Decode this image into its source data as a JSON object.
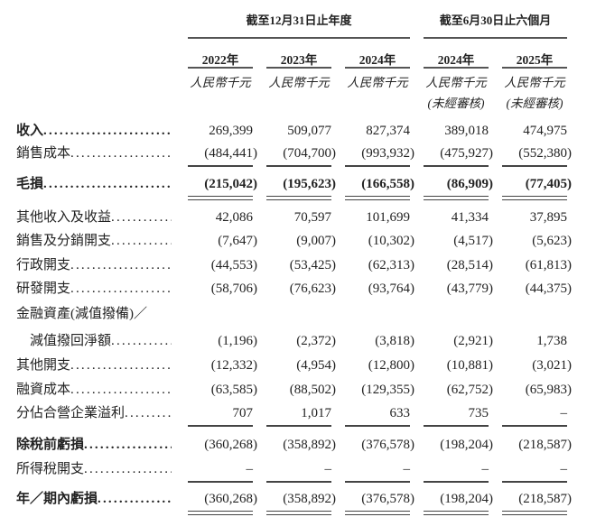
{
  "header": {
    "groups": [
      {
        "label": "截至12月31日止年度"
      },
      {
        "label": "截至6月30日止六個月"
      }
    ],
    "columns": [
      {
        "year": "2022年",
        "unit": "人民幣千元",
        "note": ""
      },
      {
        "year": "2023年",
        "unit": "人民幣千元",
        "note": ""
      },
      {
        "year": "2024年",
        "unit": "人民幣千元",
        "note": ""
      },
      {
        "year": "2024年",
        "unit": "人民幣千元",
        "note": "(未經審核)"
      },
      {
        "year": "2025年",
        "unit": "人民幣千元",
        "note": "(未經審核)"
      }
    ]
  },
  "rows": [
    {
      "label": "收入",
      "bold_label": true,
      "bold_values": false,
      "values": [
        "269,399",
        "509,077",
        "827,374",
        "389,018",
        "474,975"
      ],
      "rule_after": "none"
    },
    {
      "label": "銷售成本",
      "bold_label": false,
      "bold_values": false,
      "values": [
        "(484,441)",
        "(704,700)",
        "(993,932)",
        "(475,927)",
        "(552,380)"
      ],
      "rule_after": "single"
    },
    {
      "label": "毛損",
      "bold_label": true,
      "bold_values": true,
      "values": [
        "(215,042)",
        "(195,623)",
        "(166,558)",
        "(86,909)",
        "(77,405)"
      ],
      "rule_after": "double"
    },
    {
      "label": "其他收入及收益",
      "bold_label": false,
      "bold_values": false,
      "values": [
        "42,086",
        "70,597",
        "101,699",
        "41,334",
        "37,895"
      ],
      "rule_after": "none"
    },
    {
      "label": "銷售及分銷開支",
      "bold_label": false,
      "bold_values": false,
      "values": [
        "(7,647)",
        "(9,007)",
        "(10,302)",
        "(4,517)",
        "(5,623)"
      ],
      "rule_after": "none"
    },
    {
      "label": "行政開支",
      "bold_label": false,
      "bold_values": false,
      "values": [
        "(44,553)",
        "(53,425)",
        "(62,313)",
        "(28,514)",
        "(61,813)"
      ],
      "rule_after": "none"
    },
    {
      "label": "研發開支",
      "bold_label": false,
      "bold_values": false,
      "values": [
        "(58,706)",
        "(76,623)",
        "(93,764)",
        "(43,779)",
        "(44,375)"
      ],
      "rule_after": "none"
    },
    {
      "label": "金融資產(減值撥備)／",
      "bold_label": false,
      "bold_values": false,
      "no_dots": true,
      "values": [],
      "rule_after": "none"
    },
    {
      "label": "　減值撥回淨額",
      "bold_label": false,
      "bold_values": false,
      "values": [
        "(1,196)",
        "(2,372)",
        "(3,818)",
        "(2,921)",
        "1,738"
      ],
      "rule_after": "none"
    },
    {
      "label": "其他開支",
      "bold_label": false,
      "bold_values": false,
      "values": [
        "(12,332)",
        "(4,954)",
        "(12,800)",
        "(10,881)",
        "(3,021)"
      ],
      "rule_after": "none"
    },
    {
      "label": "融資成本",
      "bold_label": false,
      "bold_values": false,
      "values": [
        "(63,585)",
        "(88,502)",
        "(129,355)",
        "(62,752)",
        "(65,983)"
      ],
      "rule_after": "none"
    },
    {
      "label": "分佔合營企業溢利",
      "bold_label": false,
      "bold_values": false,
      "values": [
        "707",
        "1,017",
        "633",
        "735",
        "–"
      ],
      "rule_after": "single"
    },
    {
      "label": "除稅前虧損",
      "bold_label": true,
      "bold_values": false,
      "values": [
        "(360,268)",
        "(358,892)",
        "(376,578)",
        "(198,204)",
        "(218,587)"
      ],
      "rule_after": "none"
    },
    {
      "label": "所得稅開支",
      "bold_label": false,
      "bold_values": false,
      "values": [
        "–",
        "–",
        "–",
        "–",
        "–"
      ],
      "rule_after": "single"
    },
    {
      "label": "年／期內虧損",
      "bold_label": true,
      "bold_values": false,
      "values": [
        "(360,268)",
        "(358,892)",
        "(376,578)",
        "(198,204)",
        "(218,587)"
      ],
      "rule_after": "double"
    }
  ]
}
